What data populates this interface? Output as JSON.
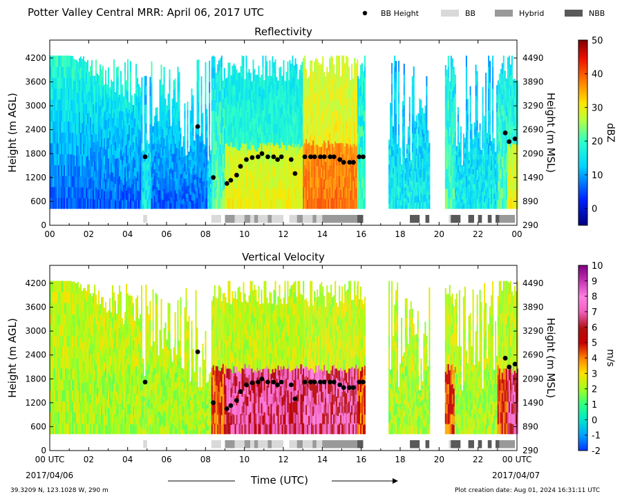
{
  "title": "Potter Valley Central MRR:  April 06, 2017 UTC",
  "footer": {
    "location": "39.3209 N, 123.1028 W, 290 m",
    "creation": "Plot creation date: Aug 01, 2024 16:31:11 UTC"
  },
  "dates": {
    "start": "2017/04/06",
    "end": "2017/04/07"
  },
  "time_axis_label": "Time (UTC)",
  "legend": [
    {
      "label": "BB Height",
      "kind": "marker",
      "color": "#000000"
    },
    {
      "label": "BB",
      "kind": "patch",
      "color": "#d9d9d9"
    },
    {
      "label": "Hybrid",
      "kind": "patch",
      "color": "#999999"
    },
    {
      "label": "NBB",
      "kind": "patch",
      "color": "#595959"
    }
  ],
  "chart_data": [
    {
      "type": "heatmap",
      "title": "Reflectivity",
      "xlabel": "",
      "ylabel": "Height (m AGL)",
      "y2label": "Height (m MSL)",
      "xlim": [
        0,
        24
      ],
      "ylim": [
        0,
        4650
      ],
      "xticks": [
        "00",
        "02",
        "04",
        "06",
        "08",
        "10",
        "12",
        "14",
        "16",
        "18",
        "20",
        "22",
        "00"
      ],
      "yticks": [
        0,
        600,
        1200,
        1800,
        2400,
        3000,
        3600,
        4200
      ],
      "y2ticks": [
        290,
        890,
        1490,
        2090,
        2690,
        3290,
        3890,
        4490
      ],
      "colorbar": {
        "label": "dBZ",
        "min": -5,
        "max": 50,
        "ticks": [
          0,
          10,
          20,
          30,
          40,
          50
        ]
      },
      "bb_height": [
        [
          4.9,
          1720
        ],
        [
          7.6,
          2480
        ],
        [
          8.4,
          1200
        ],
        [
          9.1,
          1050
        ],
        [
          9.3,
          1130
        ],
        [
          9.6,
          1260
        ],
        [
          9.8,
          1480
        ],
        [
          10.1,
          1650
        ],
        [
          10.4,
          1700
        ],
        [
          10.7,
          1720
        ],
        [
          10.9,
          1800
        ],
        [
          11.2,
          1720
        ],
        [
          11.5,
          1720
        ],
        [
          11.7,
          1650
        ],
        [
          11.9,
          1720
        ],
        [
          12.4,
          1650
        ],
        [
          12.6,
          1300
        ],
        [
          13.1,
          1720
        ],
        [
          13.4,
          1720
        ],
        [
          13.6,
          1720
        ],
        [
          13.9,
          1720
        ],
        [
          14.1,
          1720
        ],
        [
          14.4,
          1720
        ],
        [
          14.6,
          1720
        ],
        [
          14.9,
          1650
        ],
        [
          15.1,
          1580
        ],
        [
          15.4,
          1580
        ],
        [
          15.6,
          1580
        ],
        [
          15.9,
          1720
        ],
        [
          16.1,
          1720
        ],
        [
          23.4,
          2320
        ],
        [
          23.6,
          2100
        ],
        [
          23.9,
          2170
        ]
      ],
      "bb_types": [
        {
          "start": 4.8,
          "end": 5.0,
          "type": "BB"
        },
        {
          "start": 8.3,
          "end": 8.8,
          "type": "BB"
        },
        {
          "start": 9.0,
          "end": 9.5,
          "type": "Hybrid"
        },
        {
          "start": 9.5,
          "end": 10.0,
          "type": "BB"
        },
        {
          "start": 10.0,
          "end": 10.3,
          "type": "Hybrid"
        },
        {
          "start": 10.3,
          "end": 10.5,
          "type": "BB"
        },
        {
          "start": 10.5,
          "end": 10.7,
          "type": "Hybrid"
        },
        {
          "start": 10.7,
          "end": 11.2,
          "type": "BB"
        },
        {
          "start": 11.2,
          "end": 11.4,
          "type": "Hybrid"
        },
        {
          "start": 11.4,
          "end": 12.0,
          "type": "BB"
        },
        {
          "start": 12.3,
          "end": 12.7,
          "type": "BB"
        },
        {
          "start": 12.7,
          "end": 13.0,
          "type": "Hybrid"
        },
        {
          "start": 13.0,
          "end": 13.5,
          "type": "BB"
        },
        {
          "start": 13.5,
          "end": 13.7,
          "type": "Hybrid"
        },
        {
          "start": 13.7,
          "end": 14.0,
          "type": "BB"
        },
        {
          "start": 14.0,
          "end": 15.8,
          "type": "Hybrid"
        },
        {
          "start": 15.8,
          "end": 16.1,
          "type": "NBB"
        },
        {
          "start": 18.5,
          "end": 19.0,
          "type": "NBB"
        },
        {
          "start": 19.3,
          "end": 19.5,
          "type": "NBB"
        },
        {
          "start": 20.5,
          "end": 20.6,
          "type": "BB"
        },
        {
          "start": 20.6,
          "end": 21.1,
          "type": "NBB"
        },
        {
          "start": 21.5,
          "end": 21.8,
          "type": "NBB"
        },
        {
          "start": 22.0,
          "end": 22.2,
          "type": "NBB"
        },
        {
          "start": 22.5,
          "end": 22.7,
          "type": "NBB"
        },
        {
          "start": 22.9,
          "end": 23.1,
          "type": "NBB"
        },
        {
          "start": 23.1,
          "end": 23.9,
          "type": "Hybrid"
        }
      ],
      "data_segments": [
        [
          0.0,
          4.7,
          0
        ],
        [
          4.7,
          5.2,
          1
        ],
        [
          5.2,
          8.1,
          0
        ],
        [
          8.1,
          8.3,
          1
        ],
        [
          8.3,
          9.0,
          2
        ],
        [
          9.0,
          12.3,
          3
        ],
        [
          12.3,
          13.0,
          3
        ],
        [
          13.0,
          15.8,
          4
        ],
        [
          15.8,
          16.2,
          2
        ],
        [
          17.4,
          18.1,
          1
        ],
        [
          18.1,
          18.9,
          1
        ],
        [
          18.9,
          19.5,
          1
        ],
        [
          20.3,
          20.8,
          2
        ],
        [
          20.8,
          21.5,
          1
        ],
        [
          21.5,
          22.3,
          1
        ],
        [
          22.3,
          23.0,
          1
        ],
        [
          23.0,
          23.5,
          2
        ],
        [
          23.5,
          24.0,
          3
        ]
      ]
    },
    {
      "type": "heatmap",
      "title": "Vertical Velocity",
      "xlabel": "",
      "ylabel": "Height (m AGL)",
      "y2label": "Height (m MSL)",
      "xlim": [
        0,
        24
      ],
      "ylim": [
        0,
        4650
      ],
      "xticks": [
        "00 UTC",
        "02",
        "04",
        "06",
        "08",
        "10",
        "12",
        "14",
        "16",
        "18",
        "20",
        "22",
        "00 UTC"
      ],
      "yticks": [
        0,
        600,
        1200,
        1800,
        2400,
        3000,
        3600,
        4200
      ],
      "y2ticks": [
        290,
        890,
        1490,
        2090,
        2690,
        3290,
        3890,
        4490
      ],
      "colorbar": {
        "label": "m/s",
        "min": -2,
        "max": 10,
        "ticks": [
          -2,
          -1,
          0,
          1,
          2,
          3,
          4,
          5,
          6,
          7,
          8,
          9,
          10
        ]
      },
      "bb_height": [
        [
          4.9,
          1720
        ],
        [
          7.6,
          2480
        ],
        [
          8.4,
          1200
        ],
        [
          9.1,
          1050
        ],
        [
          9.3,
          1130
        ],
        [
          9.6,
          1260
        ],
        [
          9.8,
          1480
        ],
        [
          10.1,
          1650
        ],
        [
          10.4,
          1700
        ],
        [
          10.7,
          1720
        ],
        [
          10.9,
          1800
        ],
        [
          11.2,
          1720
        ],
        [
          11.5,
          1720
        ],
        [
          11.7,
          1650
        ],
        [
          11.9,
          1720
        ],
        [
          12.4,
          1650
        ],
        [
          12.6,
          1300
        ],
        [
          13.1,
          1720
        ],
        [
          13.4,
          1720
        ],
        [
          13.6,
          1720
        ],
        [
          13.9,
          1720
        ],
        [
          14.1,
          1720
        ],
        [
          14.4,
          1720
        ],
        [
          14.6,
          1720
        ],
        [
          14.9,
          1650
        ],
        [
          15.1,
          1580
        ],
        [
          15.4,
          1580
        ],
        [
          15.6,
          1580
        ],
        [
          15.9,
          1720
        ],
        [
          16.1,
          1720
        ],
        [
          23.4,
          2320
        ],
        [
          23.6,
          2100
        ],
        [
          23.9,
          2170
        ]
      ],
      "bb_types": [
        {
          "start": 4.8,
          "end": 5.0,
          "type": "BB"
        },
        {
          "start": 8.3,
          "end": 8.8,
          "type": "BB"
        },
        {
          "start": 9.0,
          "end": 9.5,
          "type": "Hybrid"
        },
        {
          "start": 9.5,
          "end": 10.0,
          "type": "BB"
        },
        {
          "start": 10.0,
          "end": 10.3,
          "type": "Hybrid"
        },
        {
          "start": 10.3,
          "end": 10.5,
          "type": "BB"
        },
        {
          "start": 10.5,
          "end": 10.7,
          "type": "Hybrid"
        },
        {
          "start": 10.7,
          "end": 11.2,
          "type": "BB"
        },
        {
          "start": 11.2,
          "end": 11.4,
          "type": "Hybrid"
        },
        {
          "start": 11.4,
          "end": 12.0,
          "type": "BB"
        },
        {
          "start": 12.3,
          "end": 12.7,
          "type": "BB"
        },
        {
          "start": 12.7,
          "end": 13.0,
          "type": "Hybrid"
        },
        {
          "start": 13.0,
          "end": 13.5,
          "type": "BB"
        },
        {
          "start": 13.5,
          "end": 13.7,
          "type": "Hybrid"
        },
        {
          "start": 13.7,
          "end": 14.0,
          "type": "BB"
        },
        {
          "start": 14.0,
          "end": 15.8,
          "type": "Hybrid"
        },
        {
          "start": 15.8,
          "end": 16.1,
          "type": "NBB"
        },
        {
          "start": 18.5,
          "end": 19.0,
          "type": "NBB"
        },
        {
          "start": 19.3,
          "end": 19.5,
          "type": "NBB"
        },
        {
          "start": 20.5,
          "end": 20.6,
          "type": "BB"
        },
        {
          "start": 20.6,
          "end": 21.1,
          "type": "NBB"
        },
        {
          "start": 21.5,
          "end": 21.8,
          "type": "NBB"
        },
        {
          "start": 22.0,
          "end": 22.2,
          "type": "NBB"
        },
        {
          "start": 22.5,
          "end": 22.7,
          "type": "NBB"
        },
        {
          "start": 22.9,
          "end": 23.1,
          "type": "NBB"
        },
        {
          "start": 23.1,
          "end": 23.9,
          "type": "Hybrid"
        }
      ],
      "data_segments": [
        [
          0.0,
          4.7,
          0
        ],
        [
          4.7,
          5.2,
          1
        ],
        [
          5.2,
          8.1,
          0
        ],
        [
          8.1,
          8.3,
          1
        ],
        [
          8.3,
          9.0,
          2
        ],
        [
          9.0,
          12.3,
          3
        ],
        [
          12.3,
          13.0,
          3
        ],
        [
          13.0,
          15.8,
          4
        ],
        [
          15.8,
          16.2,
          2
        ],
        [
          17.4,
          18.1,
          1
        ],
        [
          18.1,
          18.9,
          1
        ],
        [
          18.9,
          19.5,
          1
        ],
        [
          20.3,
          20.8,
          2
        ],
        [
          20.8,
          21.5,
          1
        ],
        [
          21.5,
          22.3,
          1
        ],
        [
          22.3,
          23.0,
          1
        ],
        [
          23.0,
          23.5,
          2
        ],
        [
          23.5,
          24.0,
          3
        ]
      ]
    }
  ]
}
